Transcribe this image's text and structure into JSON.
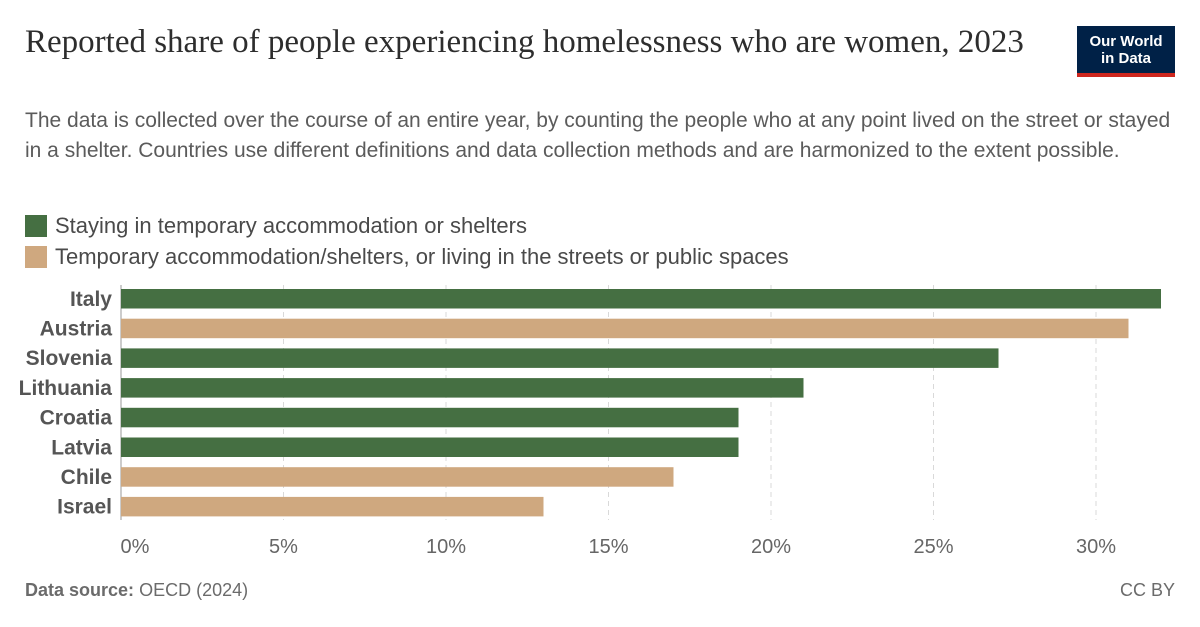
{
  "title": "Reported share of people experiencing homelessness who are women, 2023",
  "subtitle": "The data is collected over the course of an entire year, by counting the people who at any point lived on the street or stayed in a shelter. Countries use different definitions and data collection methods and are harmonized to the extent possible.",
  "logo": {
    "line1": "Our World",
    "line2": "in Data"
  },
  "legend": [
    {
      "label": "Staying in temporary accommodation or shelters",
      "color": "#456f42"
    },
    {
      "label": "Temporary accommodation/shelters, or living in the streets or public spaces",
      "color": "#cfa87f"
    }
  ],
  "footer": {
    "source_label": "Data source:",
    "source_value": "OECD (2024)",
    "license": "CC BY"
  },
  "chart_data": {
    "type": "bar",
    "orientation": "horizontal",
    "categories": [
      "Italy",
      "Austria",
      "Slovenia",
      "Lithuania",
      "Croatia",
      "Latvia",
      "Chile",
      "Israel"
    ],
    "values": [
      32,
      31,
      27,
      21,
      19,
      19,
      17,
      13
    ],
    "series_index": [
      0,
      1,
      0,
      0,
      0,
      0,
      1,
      1
    ],
    "xlim": [
      0,
      32
    ],
    "xticks": [
      0,
      5,
      10,
      15,
      20,
      25,
      30
    ],
    "xtick_labels": [
      "0%",
      "5%",
      "10%",
      "15%",
      "20%",
      "25%",
      "30%"
    ],
    "grid": "vertical dashed"
  }
}
